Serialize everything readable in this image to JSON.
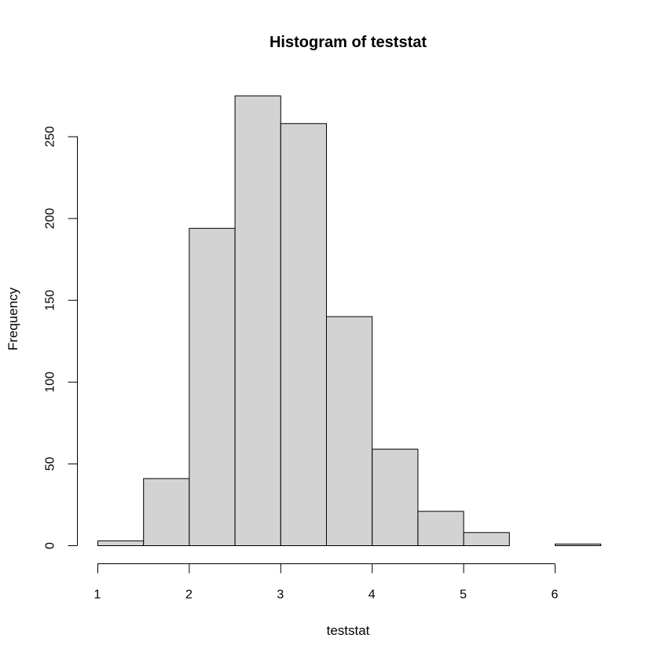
{
  "chart_data": {
    "type": "bar",
    "title": "Histogram of teststat",
    "xlabel": "teststat",
    "ylabel": "Frequency",
    "bins": [
      {
        "start": 1.0,
        "end": 1.5,
        "count": 3
      },
      {
        "start": 1.5,
        "end": 2.0,
        "count": 41
      },
      {
        "start": 2.0,
        "end": 2.5,
        "count": 194
      },
      {
        "start": 2.5,
        "end": 3.0,
        "count": 275
      },
      {
        "start": 3.0,
        "end": 3.5,
        "count": 258
      },
      {
        "start": 3.5,
        "end": 4.0,
        "count": 140
      },
      {
        "start": 4.0,
        "end": 4.5,
        "count": 59
      },
      {
        "start": 4.5,
        "end": 5.0,
        "count": 21
      },
      {
        "start": 5.0,
        "end": 5.5,
        "count": 8
      },
      {
        "start": 5.5,
        "end": 6.0,
        "count": 0
      },
      {
        "start": 6.0,
        "end": 6.5,
        "count": 1
      }
    ],
    "xlim": [
      1,
      6.5
    ],
    "ylim": [
      0,
      275
    ],
    "xticks": [
      "1",
      "2",
      "3",
      "4",
      "5",
      "6"
    ],
    "yticks": [
      "0",
      "50",
      "100",
      "150",
      "200",
      "250"
    ],
    "grid": false,
    "colors": {
      "bar_fill": "#d3d3d3",
      "bar_stroke": "#000000"
    }
  }
}
